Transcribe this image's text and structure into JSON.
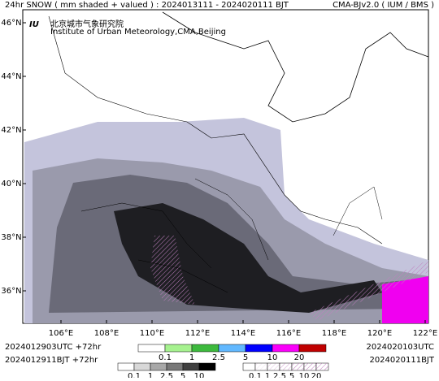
{
  "header": {
    "title": "24hr SNOW ( mm shaded + valued ) : 2024013111 - 2024020111 BJT",
    "model": "CMA-BJv2.0 ( IUM / BMS )",
    "logo_text": "北京城市气象研究院",
    "logo_subtext": "Institute of Urban Meteorology,CMA,Beijing"
  },
  "map": {
    "lat_labels": [
      "46°N",
      "44°N",
      "42°N",
      "40°N",
      "38°N",
      "36°N"
    ],
    "lon_labels": [
      "106°E",
      "108°E",
      "110°E",
      "112°E",
      "114°E",
      "116°E",
      "118°E",
      "120°E",
      "122°E"
    ]
  },
  "footer": {
    "init_utc": "2024012903UTC +72hr",
    "init_bjt": "2024012911BJT +72hr",
    "valid_utc": "2024020103UTC",
    "valid_bjt": "2024020111BJT"
  },
  "legends": [
    {
      "labels": [
        "0.1",
        "1",
        "2.5",
        "5",
        "10",
        "20"
      ],
      "colors": [
        "#ffffff",
        "#a6f28f",
        "#3dba3d",
        "#61b8ff",
        "#0000ff",
        "#fa00fa",
        "#c00000"
      ]
    },
    {
      "labels": [
        "0.1",
        "1",
        "2.5",
        "5",
        "10"
      ],
      "colors": [
        "#ffffff",
        "#d8d8d8",
        "#a8a8a8",
        "#787878",
        "#404040",
        "#000000"
      ]
    },
    {
      "labels": [
        "0.1",
        "1",
        "2.5",
        "5",
        "10",
        "20"
      ],
      "colors": [
        "#ffffff",
        "#ffffff",
        "#ffffff",
        "#ffffff",
        "#ffffff",
        "#ffffff",
        "#ffffff"
      ]
    }
  ]
}
